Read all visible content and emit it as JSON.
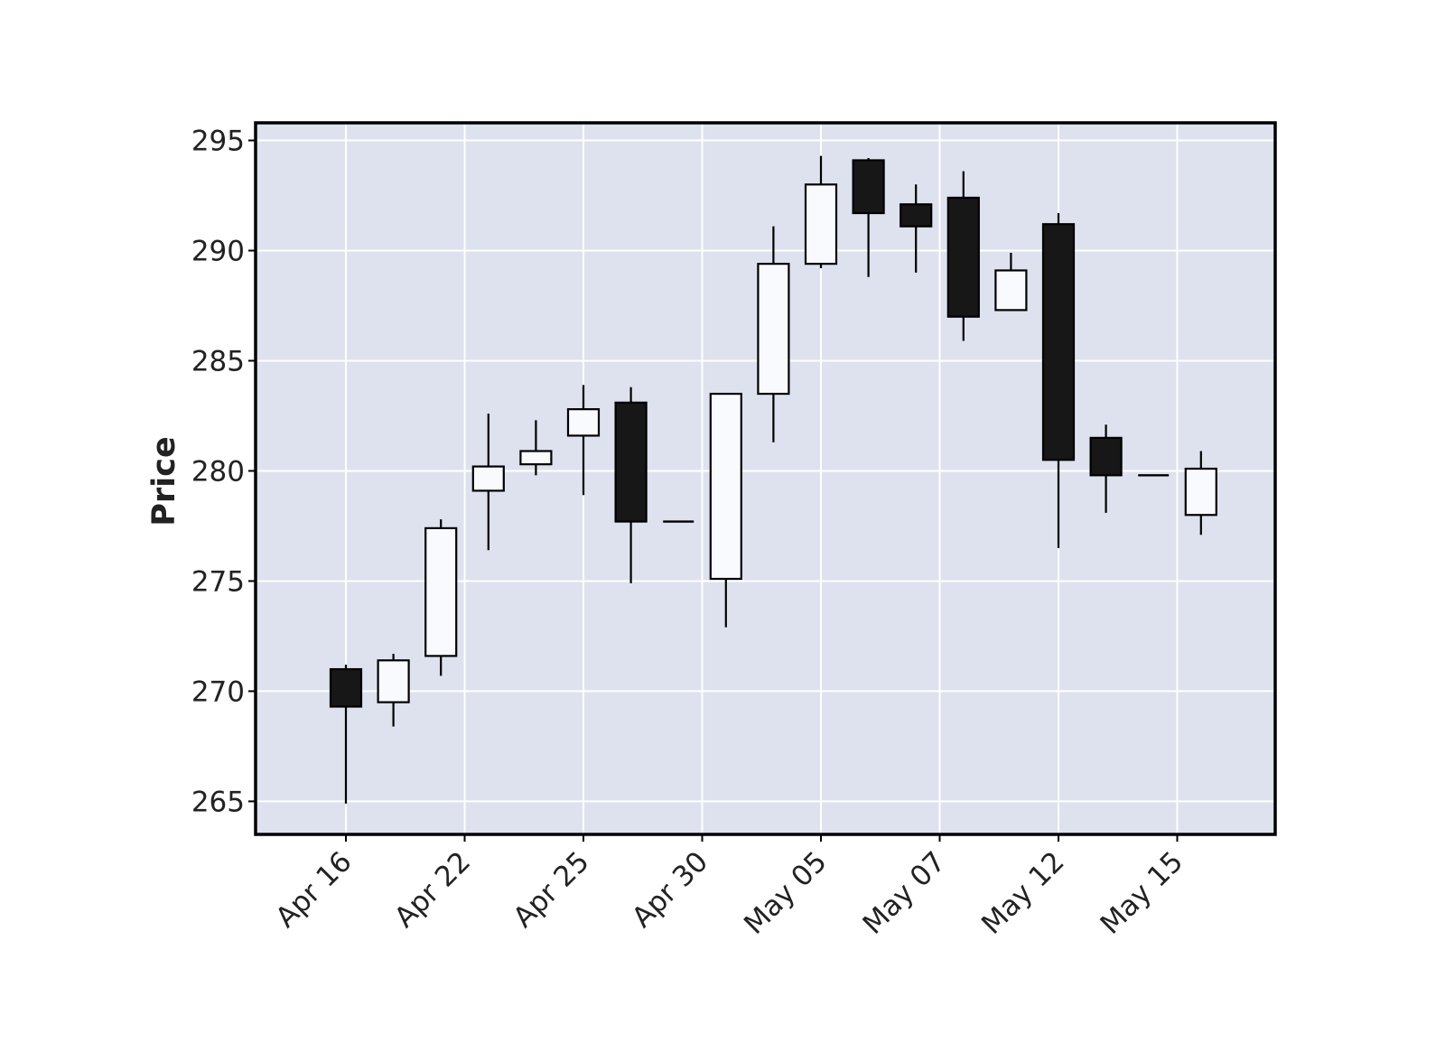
{
  "chart_data": {
    "type": "candlestick",
    "title": "",
    "xlabel": "",
    "ylabel": "Price",
    "ylim": [
      263.5,
      295.8
    ],
    "yticks": [
      265,
      270,
      275,
      280,
      285,
      290,
      295
    ],
    "grid": true,
    "colors": {
      "plot_background": "#dde2ee",
      "grid": "#ffffff",
      "up_body": "#f8fafe",
      "down_body": "#171717",
      "edge": "#000000",
      "frame": "#000000"
    },
    "xtick_labels": [
      {
        "label": "Apr 16",
        "index": 0
      },
      {
        "label": "Apr 22",
        "index": 2.5
      },
      {
        "label": "Apr 25",
        "index": 5
      },
      {
        "label": "Apr 30",
        "index": 7.5
      },
      {
        "label": "May 05",
        "index": 10
      },
      {
        "label": "May 07",
        "index": 12.5
      },
      {
        "label": "May 12",
        "index": 15
      },
      {
        "label": "May 15",
        "index": 17.5
      }
    ],
    "candles": [
      {
        "open": 271.0,
        "high": 271.2,
        "low": 264.9,
        "close": 269.3
      },
      {
        "open": 269.5,
        "high": 271.7,
        "low": 268.4,
        "close": 271.4
      },
      {
        "open": 271.6,
        "high": 277.8,
        "low": 270.7,
        "close": 277.4
      },
      {
        "open": 279.1,
        "high": 282.6,
        "low": 276.4,
        "close": 280.2
      },
      {
        "open": 280.3,
        "high": 282.3,
        "low": 279.8,
        "close": 280.9
      },
      {
        "open": 281.6,
        "high": 283.9,
        "low": 278.9,
        "close": 282.8
      },
      {
        "open": 283.1,
        "high": 283.8,
        "low": 274.9,
        "close": 277.7
      },
      {
        "open": 277.7,
        "high": 277.7,
        "low": 277.7,
        "close": 277.7
      },
      {
        "open": 275.1,
        "high": 283.5,
        "low": 272.9,
        "close": 283.5
      },
      {
        "open": 283.5,
        "high": 291.1,
        "low": 281.3,
        "close": 289.4
      },
      {
        "open": 289.4,
        "high": 294.3,
        "low": 289.2,
        "close": 293.0
      },
      {
        "open": 294.1,
        "high": 294.2,
        "low": 288.8,
        "close": 291.7
      },
      {
        "open": 292.1,
        "high": 293.0,
        "low": 289.0,
        "close": 291.1
      },
      {
        "open": 292.4,
        "high": 293.6,
        "low": 285.9,
        "close": 287.0
      },
      {
        "open": 287.3,
        "high": 289.9,
        "low": 287.3,
        "close": 289.1
      },
      {
        "open": 291.2,
        "high": 291.7,
        "low": 276.5,
        "close": 280.5
      },
      {
        "open": 281.5,
        "high": 282.1,
        "low": 278.1,
        "close": 279.8
      },
      {
        "open": 279.8,
        "high": 279.8,
        "low": 279.8,
        "close": 279.8
      },
      {
        "open": 278.0,
        "high": 280.9,
        "low": 277.1,
        "close": 280.1
      }
    ]
  }
}
